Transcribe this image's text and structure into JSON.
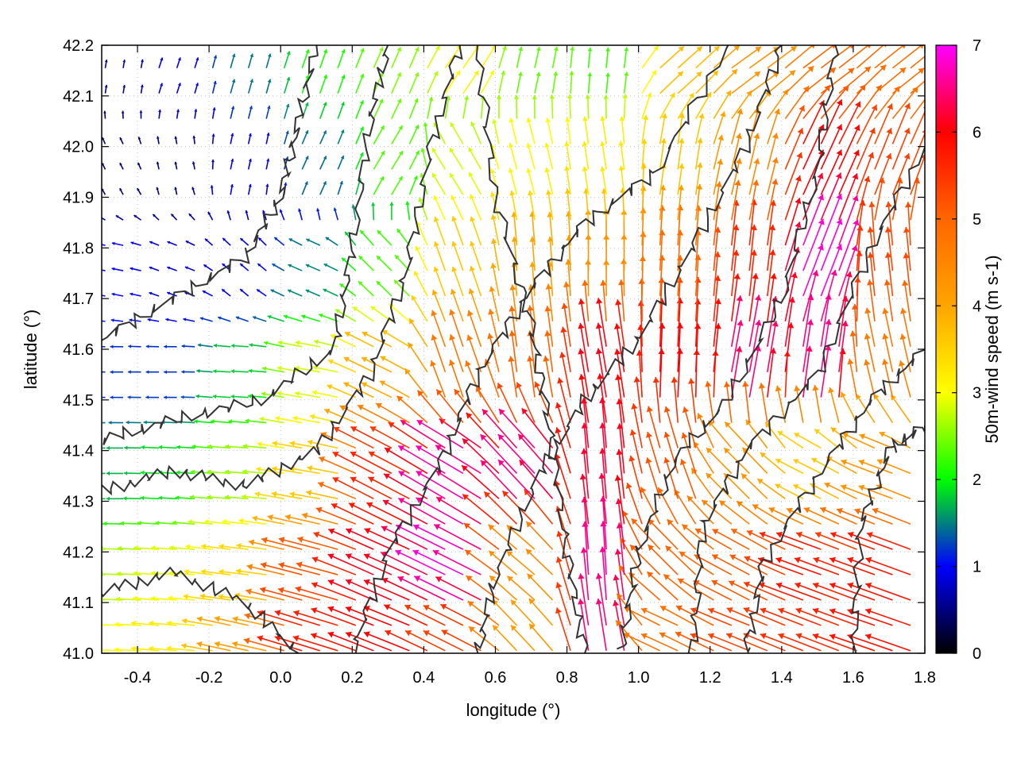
{
  "chart_data": {
    "type": "heatmap",
    "subtype": "vector-field-with-contours",
    "title": "",
    "xlabel": "longitude (°)",
    "ylabel": "latitude (°)",
    "colorbar_label": "50m-wind speed (m s-1)",
    "xlim": [
      -0.5,
      1.8
    ],
    "ylim": [
      41.0,
      42.2
    ],
    "xticks": [
      -0.4,
      -0.2,
      0.0,
      0.2,
      0.4,
      0.6,
      0.8,
      1.0,
      1.2,
      1.4,
      1.6,
      1.8
    ],
    "xtick_labels": [
      "-0.4",
      "-0.2",
      "0.0",
      "0.2",
      "0.4",
      "0.6",
      "0.8",
      "1.0",
      "1.2",
      "1.4",
      "1.6",
      "1.8"
    ],
    "yticks": [
      41.0,
      41.1,
      41.2,
      41.3,
      41.4,
      41.5,
      41.6,
      41.7,
      41.8,
      41.9,
      42.0,
      42.1,
      42.2
    ],
    "ytick_labels": [
      "41.0",
      "41.1",
      "41.2",
      "41.3",
      "41.4",
      "41.5",
      "41.6",
      "41.7",
      "41.8",
      "41.9",
      "42.0",
      "42.1",
      "42.2"
    ],
    "colorbar": {
      "range": [
        0,
        7
      ],
      "ticks": [
        0,
        1,
        2,
        3,
        4,
        5,
        6,
        7
      ],
      "tick_labels": [
        "0",
        "1",
        "2",
        "3",
        "4",
        "5",
        "6",
        "7"
      ],
      "palette": [
        [
          0,
          "#000000"
        ],
        [
          1,
          "#0000ff"
        ],
        [
          1.5,
          "#008080"
        ],
        [
          2,
          "#00ff00"
        ],
        [
          3,
          "#ffff00"
        ],
        [
          4,
          "#ffa500"
        ],
        [
          5,
          "#ff6600"
        ],
        [
          6,
          "#ff0000"
        ],
        [
          7,
          "#ff00ff"
        ]
      ]
    },
    "grid": "dotted",
    "contour_color": "#333333",
    "wind_samples": [
      {
        "lon": -0.45,
        "lat": 42.15,
        "u": 0.1,
        "v": 0.6
      },
      {
        "lon": -0.3,
        "lat": 42.15,
        "u": 0.3,
        "v": 0.9
      },
      {
        "lon": -0.1,
        "lat": 42.15,
        "u": 0.4,
        "v": 1.4
      },
      {
        "lon": 0.1,
        "lat": 42.15,
        "u": 0.7,
        "v": 2.0
      },
      {
        "lon": 0.3,
        "lat": 42.15,
        "u": 1.0,
        "v": 2.3
      },
      {
        "lon": 0.5,
        "lat": 42.15,
        "u": 1.8,
        "v": 2.6
      },
      {
        "lon": 0.7,
        "lat": 42.15,
        "u": 0.5,
        "v": 2.3
      },
      {
        "lon": 0.9,
        "lat": 42.15,
        "u": 0.2,
        "v": 2.2
      },
      {
        "lon": 1.1,
        "lat": 42.15,
        "u": 2.8,
        "v": 2.5
      },
      {
        "lon": 1.3,
        "lat": 42.15,
        "u": 3.5,
        "v": 2.5
      },
      {
        "lon": 1.5,
        "lat": 42.15,
        "u": 4.0,
        "v": 3.0
      },
      {
        "lon": 1.7,
        "lat": 42.15,
        "u": 3.8,
        "v": 3.0
      },
      {
        "lon": -0.45,
        "lat": 41.95,
        "u": -0.2,
        "v": 0.4
      },
      {
        "lon": -0.3,
        "lat": 41.95,
        "u": -0.1,
        "v": 0.5
      },
      {
        "lon": -0.1,
        "lat": 41.95,
        "u": 0.2,
        "v": 0.9
      },
      {
        "lon": 0.1,
        "lat": 41.95,
        "u": 0.6,
        "v": 1.3
      },
      {
        "lon": 0.3,
        "lat": 41.95,
        "u": 1.2,
        "v": 2.0
      },
      {
        "lon": 0.5,
        "lat": 41.95,
        "u": -1.5,
        "v": 2.4
      },
      {
        "lon": 0.7,
        "lat": 41.95,
        "u": -0.8,
        "v": 3.0
      },
      {
        "lon": 0.9,
        "lat": 41.95,
        "u": -0.5,
        "v": 3.2
      },
      {
        "lon": 1.1,
        "lat": 41.95,
        "u": 0.5,
        "v": 3.6
      },
      {
        "lon": 1.3,
        "lat": 41.95,
        "u": 1.0,
        "v": 4.3
      },
      {
        "lon": 1.5,
        "lat": 41.95,
        "u": 2.5,
        "v": 5.5
      },
      {
        "lon": 1.7,
        "lat": 41.95,
        "u": 2.0,
        "v": 5.0
      },
      {
        "lon": -0.45,
        "lat": 41.75,
        "u": -1.0,
        "v": 0.2
      },
      {
        "lon": -0.3,
        "lat": 41.75,
        "u": -0.8,
        "v": 0.3
      },
      {
        "lon": -0.1,
        "lat": 41.75,
        "u": -0.7,
        "v": 0.6
      },
      {
        "lon": 0.1,
        "lat": 41.75,
        "u": -1.4,
        "v": 0.6
      },
      {
        "lon": 0.3,
        "lat": 41.75,
        "u": -1.6,
        "v": 1.6
      },
      {
        "lon": 0.5,
        "lat": 41.75,
        "u": -1.2,
        "v": 3.4
      },
      {
        "lon": 0.7,
        "lat": 41.75,
        "u": -0.3,
        "v": 4.0
      },
      {
        "lon": 0.9,
        "lat": 41.75,
        "u": 0.0,
        "v": 4.3
      },
      {
        "lon": 1.1,
        "lat": 41.75,
        "u": 0.3,
        "v": 4.9
      },
      {
        "lon": 1.3,
        "lat": 41.75,
        "u": 0.6,
        "v": 5.6
      },
      {
        "lon": 1.5,
        "lat": 41.75,
        "u": 2.5,
        "v": 6.4
      },
      {
        "lon": 1.7,
        "lat": 41.75,
        "u": -0.6,
        "v": 5.3
      },
      {
        "lon": -0.45,
        "lat": 41.55,
        "u": -1.2,
        "v": 0.0
      },
      {
        "lon": -0.3,
        "lat": 41.55,
        "u": -1.2,
        "v": 0.0
      },
      {
        "lon": -0.1,
        "lat": 41.55,
        "u": -1.8,
        "v": 0.1
      },
      {
        "lon": 0.1,
        "lat": 41.55,
        "u": -2.8,
        "v": 0.5
      },
      {
        "lon": 0.3,
        "lat": 41.55,
        "u": -3.5,
        "v": 1.7
      },
      {
        "lon": 0.5,
        "lat": 41.55,
        "u": -1.5,
        "v": 4.5
      },
      {
        "lon": 0.7,
        "lat": 41.55,
        "u": -0.6,
        "v": 5.0
      },
      {
        "lon": 0.9,
        "lat": 41.55,
        "u": -1.0,
        "v": 6.0
      },
      {
        "lon": 1.1,
        "lat": 41.55,
        "u": 0.3,
        "v": 6.0
      },
      {
        "lon": 1.3,
        "lat": 41.55,
        "u": 1.2,
        "v": 6.4
      },
      {
        "lon": 1.5,
        "lat": 41.55,
        "u": 1.0,
        "v": 6.5
      },
      {
        "lon": 1.7,
        "lat": 41.55,
        "u": -1.0,
        "v": 4.6
      },
      {
        "lon": -0.45,
        "lat": 41.35,
        "u": -1.7,
        "v": 0.0
      },
      {
        "lon": -0.3,
        "lat": 41.35,
        "u": -1.9,
        "v": 0.1
      },
      {
        "lon": -0.1,
        "lat": 41.35,
        "u": -2.6,
        "v": 0.2
      },
      {
        "lon": 0.1,
        "lat": 41.35,
        "u": -3.5,
        "v": 0.6
      },
      {
        "lon": 0.3,
        "lat": 41.35,
        "u": -5.0,
        "v": 2.6
      },
      {
        "lon": 0.5,
        "lat": 41.35,
        "u": -5.8,
        "v": 3.4
      },
      {
        "lon": 0.7,
        "lat": 41.35,
        "u": -4.5,
        "v": 4.8
      },
      {
        "lon": 0.9,
        "lat": 41.35,
        "u": -0.5,
        "v": 6.2
      },
      {
        "lon": 1.1,
        "lat": 41.35,
        "u": -1.5,
        "v": 5.0
      },
      {
        "lon": 1.3,
        "lat": 41.35,
        "u": -3.0,
        "v": 3.0
      },
      {
        "lon": 1.5,
        "lat": 41.35,
        "u": -3.2,
        "v": 1.6
      },
      {
        "lon": 1.7,
        "lat": 41.35,
        "u": -4.0,
        "v": 1.5
      },
      {
        "lon": -0.45,
        "lat": 41.15,
        "u": -2.7,
        "v": 0.1
      },
      {
        "lon": -0.3,
        "lat": 41.15,
        "u": -2.9,
        "v": 0.2
      },
      {
        "lon": -0.1,
        "lat": 41.15,
        "u": -3.4,
        "v": 0.4
      },
      {
        "lon": 0.1,
        "lat": 41.15,
        "u": -5.0,
        "v": 1.3
      },
      {
        "lon": 0.3,
        "lat": 41.15,
        "u": -5.6,
        "v": 2.5
      },
      {
        "lon": 0.5,
        "lat": 41.15,
        "u": -6.2,
        "v": 3.0
      },
      {
        "lon": 0.7,
        "lat": 41.15,
        "u": -3.3,
        "v": 2.8
      },
      {
        "lon": 0.9,
        "lat": 41.15,
        "u": -0.4,
        "v": 6.6
      },
      {
        "lon": 1.1,
        "lat": 41.15,
        "u": -3.6,
        "v": 3.6
      },
      {
        "lon": 1.3,
        "lat": 41.15,
        "u": -4.5,
        "v": 2.4
      },
      {
        "lon": 1.5,
        "lat": 41.15,
        "u": -5.5,
        "v": 2.0
      },
      {
        "lon": 1.7,
        "lat": 41.15,
        "u": -5.5,
        "v": 2.0
      },
      {
        "lon": -0.45,
        "lat": 41.03,
        "u": -3.0,
        "v": 0.1
      },
      {
        "lon": -0.3,
        "lat": 41.03,
        "u": -3.2,
        "v": 0.3
      },
      {
        "lon": -0.1,
        "lat": 41.03,
        "u": -4.0,
        "v": 0.9
      },
      {
        "lon": 0.1,
        "lat": 41.03,
        "u": -5.5,
        "v": 1.7
      },
      {
        "lon": 0.3,
        "lat": 41.03,
        "u": -5.6,
        "v": 2.2
      },
      {
        "lon": 0.5,
        "lat": 41.03,
        "u": -4.8,
        "v": 2.4
      },
      {
        "lon": 0.7,
        "lat": 41.03,
        "u": -2.8,
        "v": 3.0
      },
      {
        "lon": 0.9,
        "lat": 41.03,
        "u": -1.0,
        "v": 6.4
      },
      {
        "lon": 1.1,
        "lat": 41.03,
        "u": -4.4,
        "v": 2.0
      },
      {
        "lon": 1.3,
        "lat": 41.03,
        "u": -5.0,
        "v": 2.0
      },
      {
        "lon": 1.5,
        "lat": 41.03,
        "u": -5.2,
        "v": 2.0
      },
      {
        "lon": 1.7,
        "lat": 41.03,
        "u": -5.5,
        "v": 1.9
      }
    ]
  }
}
